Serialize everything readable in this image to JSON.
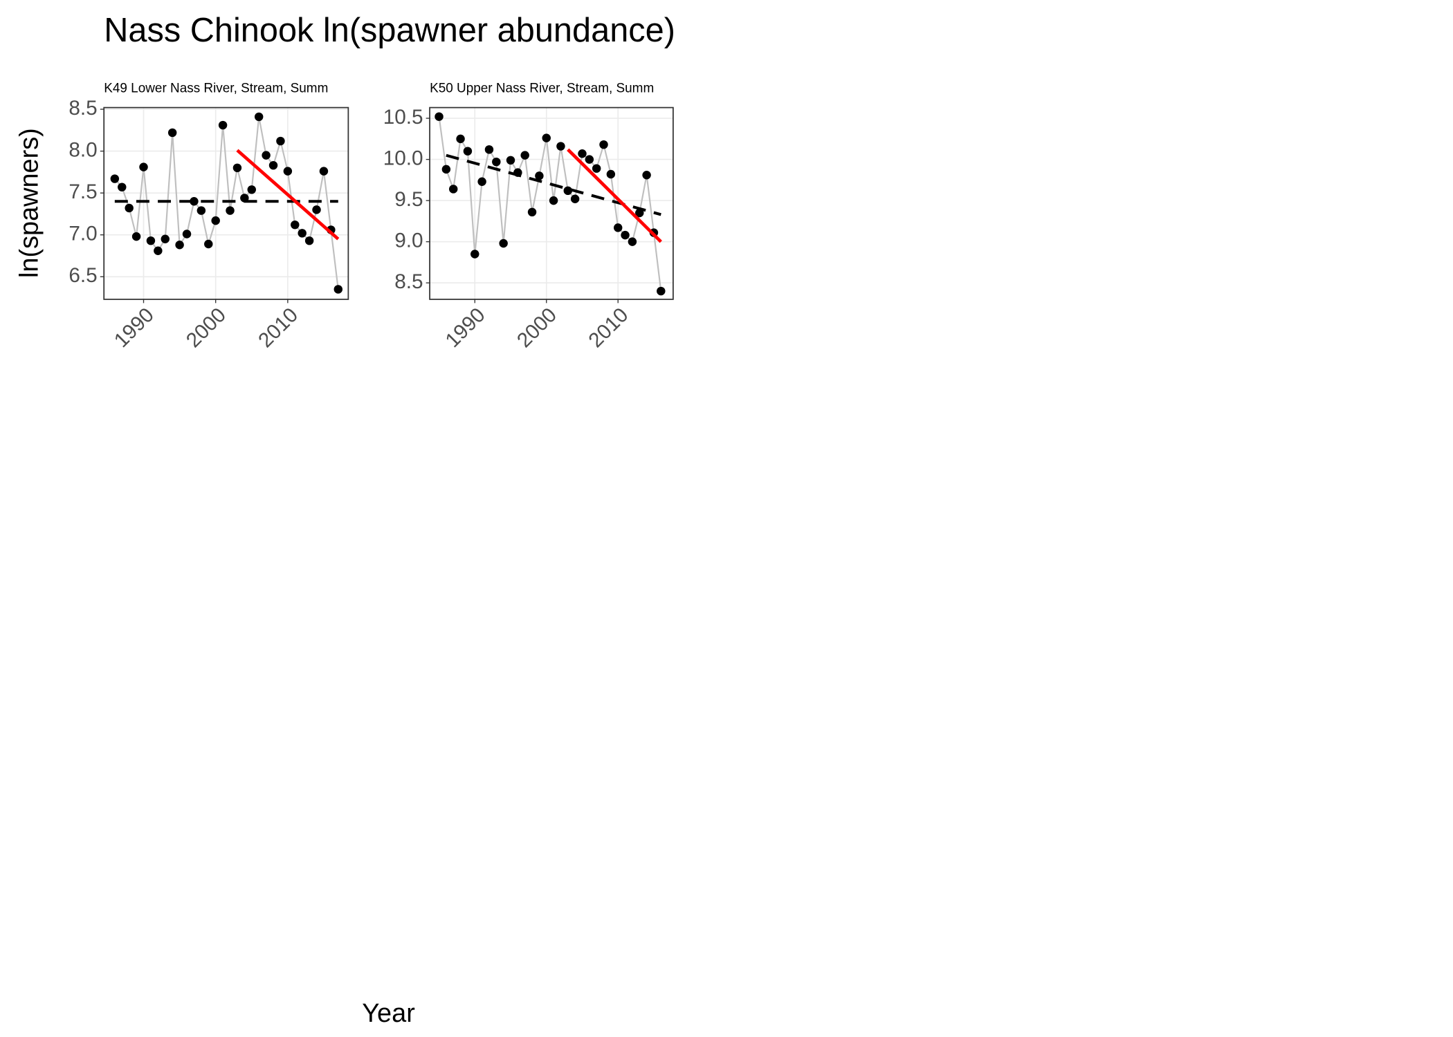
{
  "title": "Nass Chinook ln(spawner abundance)",
  "xlabel": "Year",
  "ylabel": "ln(spawners)",
  "chart_data": [
    {
      "type": "line",
      "title": "K49 Lower Nass River, Stream, Summ",
      "xlim": [
        1984.5,
        2018.4
      ],
      "xticks": [
        1990,
        2000,
        2010
      ],
      "ylim": [
        6.23,
        8.52
      ],
      "yticks": [
        6.5,
        {
          "value": 7,
          "label": "7.0"
        },
        7.5,
        {
          "value": 8,
          "label": "8.0"
        },
        8.5
      ],
      "grid": true,
      "series": [
        {
          "style": "points",
          "color": "#bfbfbf",
          "marker_color": "#000000",
          "x": [
            1986,
            1987,
            1988,
            1989,
            1990,
            1991,
            1992,
            1993,
            1994,
            1995,
            1996,
            1997,
            1998,
            1999,
            2000,
            2001,
            2002,
            2003,
            2004,
            2005,
            2006,
            2007,
            2008,
            2009,
            2010,
            2011,
            2012,
            2013,
            2014,
            2015,
            2016,
            2017
          ],
          "values": [
            7.67,
            7.57,
            7.32,
            6.98,
            7.81,
            6.93,
            6.81,
            6.95,
            8.22,
            6.88,
            7.01,
            7.4,
            7.29,
            6.89,
            7.17,
            8.31,
            7.29,
            7.8,
            7.44,
            7.54,
            8.41,
            7.95,
            7.83,
            8.12,
            7.76,
            7.12,
            7.02,
            6.93,
            7.3,
            7.76,
            7.06,
            6.35
          ]
        },
        {
          "style": "dashed",
          "color": "#000000",
          "x": [
            1986,
            2017
          ],
          "values": [
            7.4,
            7.4
          ]
        },
        {
          "style": "solid",
          "color": "#ff0000",
          "x": [
            2003,
            2017
          ],
          "values": [
            8.01,
            6.95
          ]
        }
      ]
    },
    {
      "type": "line",
      "title": "K50 Upper Nass River, Stream, Summ",
      "xlim": [
        1983.7,
        2017.7
      ],
      "xticks": [
        1990,
        2000,
        2010
      ],
      "ylim": [
        8.3,
        10.63
      ],
      "yticks": [
        8.5,
        {
          "value": 9,
          "label": "9.0"
        },
        9.5,
        {
          "value": 10,
          "label": "10.0"
        },
        10.5
      ],
      "grid": true,
      "series": [
        {
          "style": "points",
          "color": "#bfbfbf",
          "marker_color": "#000000",
          "x": [
            1985,
            1986,
            1987,
            1988,
            1989,
            1990,
            1991,
            1992,
            1993,
            1994,
            1995,
            1996,
            1997,
            1998,
            1999,
            2000,
            2001,
            2002,
            2003,
            2004,
            2005,
            2006,
            2007,
            2008,
            2009,
            2010,
            2011,
            2012,
            2013,
            2014,
            2015,
            2016
          ],
          "values": [
            10.52,
            9.88,
            9.64,
            10.25,
            10.1,
            8.85,
            9.73,
            10.12,
            9.97,
            8.98,
            9.99,
            9.84,
            10.05,
            9.36,
            9.8,
            10.26,
            9.5,
            10.16,
            9.62,
            9.52,
            10.07,
            10.0,
            9.89,
            10.18,
            9.82,
            9.17,
            9.08,
            9.0,
            9.35,
            9.81,
            9.11,
            8.4
          ]
        },
        {
          "style": "dashed",
          "color": "#000000",
          "x": [
            1986,
            2016
          ],
          "values": [
            10.05,
            9.33
          ]
        },
        {
          "style": "solid",
          "color": "#ff0000",
          "x": [
            2003,
            2016
          ],
          "values": [
            10.12,
            9.0
          ]
        }
      ]
    }
  ]
}
